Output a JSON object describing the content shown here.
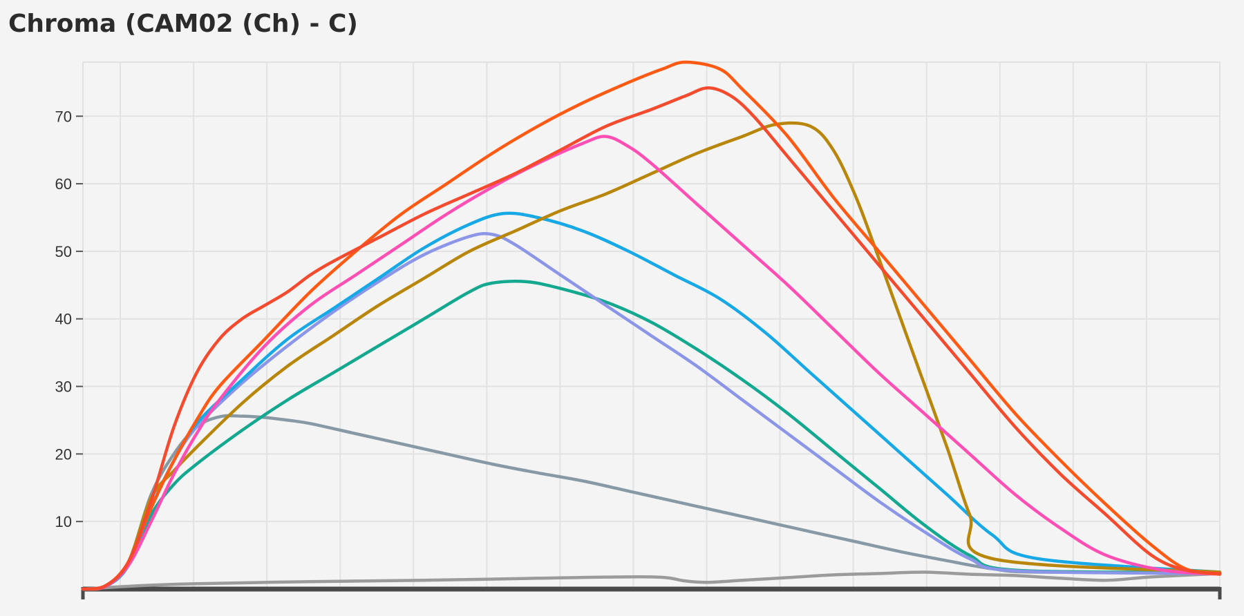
{
  "chart_data": {
    "type": "line",
    "title": "Chroma (CAM02 (Ch) - C)",
    "xlabel": "",
    "ylabel": "",
    "xlim": [
      0,
      100
    ],
    "ylim": [
      0,
      78
    ],
    "y_ticks": [
      10,
      20,
      30,
      40,
      50,
      60,
      70
    ],
    "y_tick_labels": [
      "10",
      "20",
      "30",
      "40",
      "50",
      "60",
      "70"
    ],
    "x_tick_labels": [],
    "grid": true,
    "legend": "none",
    "series": [
      {
        "color": "#f44a2e",
        "points": [
          [
            0,
            0
          ],
          [
            2,
            0.5
          ],
          [
            4,
            4
          ],
          [
            6,
            13
          ],
          [
            8,
            24
          ],
          [
            10,
            32
          ],
          [
            12,
            37
          ],
          [
            14,
            40
          ],
          [
            16,
            42
          ],
          [
            18,
            44
          ],
          [
            20,
            46.5
          ],
          [
            22,
            48.5
          ],
          [
            26,
            52
          ],
          [
            30,
            55.5
          ],
          [
            34,
            58.5
          ],
          [
            38,
            61.5
          ],
          [
            42,
            65
          ],
          [
            46,
            68.5
          ],
          [
            50,
            71
          ],
          [
            53,
            73
          ],
          [
            55,
            74.2
          ],
          [
            57,
            73
          ],
          [
            59,
            70
          ],
          [
            62,
            64
          ],
          [
            66,
            56
          ],
          [
            70,
            48
          ],
          [
            74,
            40
          ],
          [
            78,
            32
          ],
          [
            82,
            24
          ],
          [
            86,
            17
          ],
          [
            90,
            11
          ],
          [
            94,
            5
          ],
          [
            97,
            2.8
          ],
          [
            100,
            2.3
          ]
        ]
      },
      {
        "color": "#ff5a14",
        "points": [
          [
            0,
            0
          ],
          [
            2,
            0.5
          ],
          [
            4,
            4
          ],
          [
            6,
            12
          ],
          [
            8,
            19
          ],
          [
            10,
            25
          ],
          [
            12,
            30
          ],
          [
            16,
            37
          ],
          [
            20,
            44
          ],
          [
            24,
            50
          ],
          [
            28,
            55.5
          ],
          [
            32,
            60
          ],
          [
            36,
            64.5
          ],
          [
            40,
            68.5
          ],
          [
            44,
            72
          ],
          [
            48,
            75
          ],
          [
            51,
            77
          ],
          [
            53,
            78
          ],
          [
            56,
            77
          ],
          [
            58,
            74
          ],
          [
            62,
            67
          ],
          [
            66,
            58
          ],
          [
            70,
            50
          ],
          [
            74,
            42
          ],
          [
            78,
            34
          ],
          [
            82,
            26
          ],
          [
            86,
            19
          ],
          [
            90,
            12.5
          ],
          [
            94,
            6.5
          ],
          [
            97,
            3
          ],
          [
            100,
            2.2
          ]
        ]
      },
      {
        "color": "#ff4fb4",
        "points": [
          [
            0,
            0
          ],
          [
            2,
            0.4
          ],
          [
            4,
            3.5
          ],
          [
            6,
            10
          ],
          [
            8,
            17
          ],
          [
            10,
            23
          ],
          [
            12,
            28
          ],
          [
            16,
            36
          ],
          [
            20,
            42
          ],
          [
            24,
            46.5
          ],
          [
            28,
            51
          ],
          [
            32,
            55.5
          ],
          [
            36,
            59.5
          ],
          [
            40,
            63
          ],
          [
            44,
            66
          ],
          [
            46,
            67
          ],
          [
            48,
            65.5
          ],
          [
            50,
            63
          ],
          [
            54,
            57
          ],
          [
            58,
            51
          ],
          [
            62,
            45
          ],
          [
            66,
            38.5
          ],
          [
            70,
            32
          ],
          [
            74,
            26
          ],
          [
            78,
            20
          ],
          [
            82,
            14
          ],
          [
            86,
            9
          ],
          [
            90,
            5
          ],
          [
            95,
            2.8
          ],
          [
            100,
            2.2
          ]
        ]
      },
      {
        "color": "#b8860b",
        "points": [
          [
            0,
            0
          ],
          [
            2,
            0.4
          ],
          [
            4,
            4
          ],
          [
            6,
            13.5
          ],
          [
            8,
            17.5
          ],
          [
            10,
            21
          ],
          [
            14,
            27.5
          ],
          [
            18,
            33
          ],
          [
            22,
            37.5
          ],
          [
            26,
            42
          ],
          [
            30,
            46
          ],
          [
            34,
            50
          ],
          [
            38,
            53
          ],
          [
            42,
            56
          ],
          [
            46,
            58.5
          ],
          [
            50,
            61.5
          ],
          [
            54,
            64.5
          ],
          [
            58,
            67
          ],
          [
            61,
            68.8
          ],
          [
            64,
            68.5
          ],
          [
            66,
            65
          ],
          [
            68,
            58
          ],
          [
            70,
            49
          ],
          [
            73,
            35
          ],
          [
            76,
            21
          ],
          [
            78,
            11
          ],
          [
            80,
            4.5
          ],
          [
            100,
            2.5
          ]
        ]
      },
      {
        "color": "#17a8e6",
        "points": [
          [
            0,
            0
          ],
          [
            2,
            0.4
          ],
          [
            4,
            3.5
          ],
          [
            6,
            12
          ],
          [
            8,
            19
          ],
          [
            10,
            24.5
          ],
          [
            14,
            31
          ],
          [
            18,
            37
          ],
          [
            22,
            41.5
          ],
          [
            26,
            46
          ],
          [
            30,
            50.5
          ],
          [
            34,
            54
          ],
          [
            37,
            55.6
          ],
          [
            40,
            55
          ],
          [
            44,
            53
          ],
          [
            48,
            50
          ],
          [
            52,
            46.5
          ],
          [
            56,
            43
          ],
          [
            60,
            38
          ],
          [
            64,
            32
          ],
          [
            68,
            26
          ],
          [
            72,
            20
          ],
          [
            76,
            14
          ],
          [
            80,
            8
          ],
          [
            84,
            4.5
          ],
          [
            100,
            2.5
          ]
        ]
      },
      {
        "color": "#8c96e8",
        "points": [
          [
            0,
            0
          ],
          [
            2,
            0.4
          ],
          [
            4,
            3.5
          ],
          [
            6,
            12
          ],
          [
            8,
            19
          ],
          [
            10,
            24
          ],
          [
            14,
            30.5
          ],
          [
            18,
            36
          ],
          [
            22,
            41
          ],
          [
            26,
            45.5
          ],
          [
            30,
            49.5
          ],
          [
            34,
            52.2
          ],
          [
            36,
            52.5
          ],
          [
            38,
            51
          ],
          [
            42,
            46.5
          ],
          [
            46,
            42
          ],
          [
            50,
            37.5
          ],
          [
            54,
            33
          ],
          [
            58,
            28
          ],
          [
            62,
            23
          ],
          [
            66,
            18
          ],
          [
            70,
            13
          ],
          [
            74,
            8.5
          ],
          [
            78,
            4.5
          ],
          [
            82,
            2.7
          ],
          [
            100,
            2.3
          ]
        ]
      },
      {
        "color": "#14a890",
        "points": [
          [
            0,
            0
          ],
          [
            2,
            0.4
          ],
          [
            4,
            3.5
          ],
          [
            6,
            11
          ],
          [
            8,
            15.5
          ],
          [
            10,
            18.5
          ],
          [
            14,
            23.5
          ],
          [
            18,
            28
          ],
          [
            22,
            32
          ],
          [
            26,
            36
          ],
          [
            30,
            40
          ],
          [
            34,
            44
          ],
          [
            36,
            45.3
          ],
          [
            39,
            45.5
          ],
          [
            42,
            44.5
          ],
          [
            46,
            42.5
          ],
          [
            50,
            39.5
          ],
          [
            54,
            35.5
          ],
          [
            58,
            31
          ],
          [
            62,
            26
          ],
          [
            66,
            20.5
          ],
          [
            70,
            15
          ],
          [
            74,
            9.5
          ],
          [
            78,
            5
          ],
          [
            82,
            2.8
          ],
          [
            100,
            2.5
          ]
        ]
      },
      {
        "color": "#8899a6",
        "points": [
          [
            0,
            0
          ],
          [
            2,
            0.5
          ],
          [
            4,
            4
          ],
          [
            6,
            14
          ],
          [
            8,
            20
          ],
          [
            10,
            24
          ],
          [
            12,
            25.5
          ],
          [
            14,
            25.6
          ],
          [
            16,
            25.4
          ],
          [
            18,
            25
          ],
          [
            20,
            24.5
          ],
          [
            24,
            23
          ],
          [
            28,
            21.5
          ],
          [
            32,
            20
          ],
          [
            36,
            18.5
          ],
          [
            40,
            17.2
          ],
          [
            44,
            16
          ],
          [
            48,
            14.5
          ],
          [
            52,
            13
          ],
          [
            56,
            11.5
          ],
          [
            60,
            10
          ],
          [
            64,
            8.5
          ],
          [
            68,
            7
          ],
          [
            72,
            5.5
          ],
          [
            76,
            4.2
          ],
          [
            80,
            3
          ],
          [
            84,
            2.5
          ],
          [
            100,
            2.4
          ]
        ]
      },
      {
        "color": "#9b9b9b",
        "points": [
          [
            0,
            0
          ],
          [
            5,
            0.5
          ],
          [
            10,
            0.8
          ],
          [
            20,
            1.1
          ],
          [
            30,
            1.3
          ],
          [
            40,
            1.6
          ],
          [
            50,
            1.8
          ],
          [
            53,
            1.2
          ],
          [
            55,
            1.0
          ],
          [
            58,
            1.3
          ],
          [
            62,
            1.7
          ],
          [
            66,
            2.1
          ],
          [
            70,
            2.3
          ],
          [
            74,
            2.5
          ],
          [
            78,
            2.2
          ],
          [
            82,
            2.0
          ],
          [
            86,
            1.6
          ],
          [
            90,
            1.3
          ],
          [
            94,
            1.8
          ],
          [
            100,
            2.3
          ]
        ]
      }
    ]
  }
}
